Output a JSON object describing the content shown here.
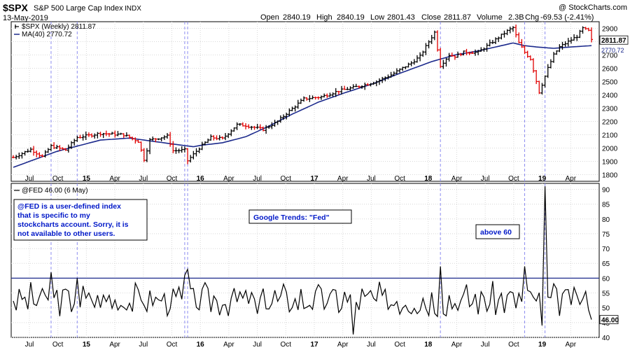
{
  "header": {
    "symbol": "$SPX",
    "name": "S&P 500 Large Cap Index",
    "exchange": "INDX",
    "date": "13-May-2019",
    "watermark": "@ StockCharts.com",
    "open_label": "Open",
    "open": "2840.19",
    "high_label": "High",
    "high": "2840.19",
    "low_label": "Low",
    "low": "2801.43",
    "close_label": "Close",
    "close": "2811.87",
    "volume_label": "Volume",
    "volume": "2.3B",
    "chg_label": "Chg",
    "chg": "-69.53 (-2.41%)"
  },
  "legend": {
    "price": "$SPX (Weekly) 2811.87",
    "ma": "MA(40) 2770.72",
    "ma_value": "2770.72",
    "fed": "@FED 46.00 (6 May)"
  },
  "annotations": {
    "note_lines": [
      "@FED is a user-defined index",
      "that is specific to my",
      "stockcharts account. Sorry, it is",
      "not available to other users."
    ],
    "trends": "Google Trends: \"Fed\"",
    "above": "above 60"
  },
  "colors": {
    "up": "#000000",
    "down": "#e00000",
    "ma": "#1c2a8c",
    "fed": "#000000",
    "threshold": "#1c2a8c",
    "vline": "#8c8cf0",
    "frame": "#000000",
    "grid": "#d8d8d8",
    "text": "#000000",
    "annot_text": "#0018c8"
  },
  "chart_data": [
    {
      "type": "ohlc",
      "title": "$SPX (Weekly) 2811.87",
      "ylim": [
        1750,
        2950
      ],
      "y_ticks": [
        1800,
        1900,
        2000,
        2100,
        2200,
        2300,
        2400,
        2500,
        2600,
        2700,
        2800,
        2900
      ],
      "x_ticks": [
        "Jul",
        "Oct",
        "15",
        "Apr",
        "Jul",
        "Oct",
        "16",
        "Apr",
        "Jul",
        "Oct",
        "17",
        "Apr",
        "Jul",
        "Oct",
        "18",
        "Apr",
        "Jul",
        "Oct",
        "19",
        "Apr"
      ],
      "last_value": "2811.87",
      "ma_last_value": "2770.72",
      "price_anchors": [
        [
          0,
          1930
        ],
        [
          6,
          1990
        ],
        [
          10,
          1935
        ],
        [
          13,
          2015
        ],
        [
          18,
          1985
        ],
        [
          22,
          2080
        ],
        [
          30,
          2110
        ],
        [
          38,
          2100
        ],
        [
          43,
          2050
        ],
        [
          45,
          1915
        ],
        [
          47,
          2060
        ],
        [
          53,
          2090
        ],
        [
          55,
          1980
        ],
        [
          59,
          1985
        ],
        [
          60,
          1905
        ],
        [
          64,
          2000
        ],
        [
          68,
          2080
        ],
        [
          72,
          2070
        ],
        [
          77,
          2175
        ],
        [
          80,
          2170
        ],
        [
          86,
          2140
        ],
        [
          91,
          2200
        ],
        [
          94,
          2260
        ],
        [
          100,
          2370
        ],
        [
          106,
          2385
        ],
        [
          112,
          2430
        ],
        [
          120,
          2470
        ],
        [
          125,
          2500
        ],
        [
          130,
          2550
        ],
        [
          137,
          2640
        ],
        [
          140,
          2690
        ],
        [
          143,
          2800
        ],
        [
          145,
          2870
        ],
        [
          147,
          2620
        ],
        [
          150,
          2700
        ],
        [
          152,
          2690
        ],
        [
          155,
          2720
        ],
        [
          160,
          2720
        ],
        [
          165,
          2800
        ],
        [
          170,
          2880
        ],
        [
          172,
          2905
        ],
        [
          174,
          2790
        ],
        [
          176,
          2720
        ],
        [
          178,
          2670
        ],
        [
          181,
          2420
        ],
        [
          182,
          2480
        ],
        [
          184,
          2600
        ],
        [
          186,
          2700
        ],
        [
          188,
          2760
        ],
        [
          191,
          2800
        ],
        [
          194,
          2840
        ],
        [
          196,
          2900
        ],
        [
          198,
          2880
        ],
        [
          199,
          2810
        ]
      ],
      "ma_anchors": [
        [
          0,
          1855
        ],
        [
          15,
          1975
        ],
        [
          30,
          2060
        ],
        [
          40,
          2075
        ],
        [
          55,
          2030
        ],
        [
          62,
          2010
        ],
        [
          65,
          2022
        ],
        [
          72,
          2040
        ],
        [
          80,
          2085
        ],
        [
          88,
          2165
        ],
        [
          96,
          2255
        ],
        [
          105,
          2345
        ],
        [
          114,
          2415
        ],
        [
          124,
          2485
        ],
        [
          134,
          2570
        ],
        [
          144,
          2650
        ],
        [
          152,
          2700
        ],
        [
          160,
          2730
        ],
        [
          166,
          2760
        ],
        [
          172,
          2790
        ],
        [
          176,
          2770
        ],
        [
          180,
          2760
        ],
        [
          186,
          2750
        ],
        [
          192,
          2760
        ],
        [
          199,
          2770
        ]
      ],
      "weeks": 200,
      "seed": 7
    },
    {
      "type": "line",
      "title": "@FED 46.00 (6 May)",
      "ylim": [
        40,
        92
      ],
      "y_ticks": [
        40,
        45,
        50,
        55,
        60,
        65,
        70,
        75,
        80,
        85,
        90
      ],
      "threshold": 60,
      "threshold_label": "above 60",
      "last_value": "46.00",
      "spikes": [
        [
          13,
          62
        ],
        [
          22,
          60
        ],
        [
          59,
          61
        ],
        [
          60,
          63
        ],
        [
          147,
          64
        ],
        [
          176,
          64
        ],
        [
          183,
          91
        ]
      ],
      "dips": [
        [
          22,
          45
        ],
        [
          60,
          45
        ],
        [
          84,
          48
        ],
        [
          117,
          41
        ],
        [
          182,
          44
        ]
      ],
      "seed": 3
    }
  ],
  "x_labels": [
    "Jul",
    "Oct",
    "15",
    "Apr",
    "Jul",
    "Oct",
    "16",
    "Apr",
    "Jul",
    "Oct",
    "17",
    "Apr",
    "Jul",
    "Oct",
    "18",
    "Apr",
    "Jul",
    "Oct",
    "19",
    "Apr"
  ]
}
